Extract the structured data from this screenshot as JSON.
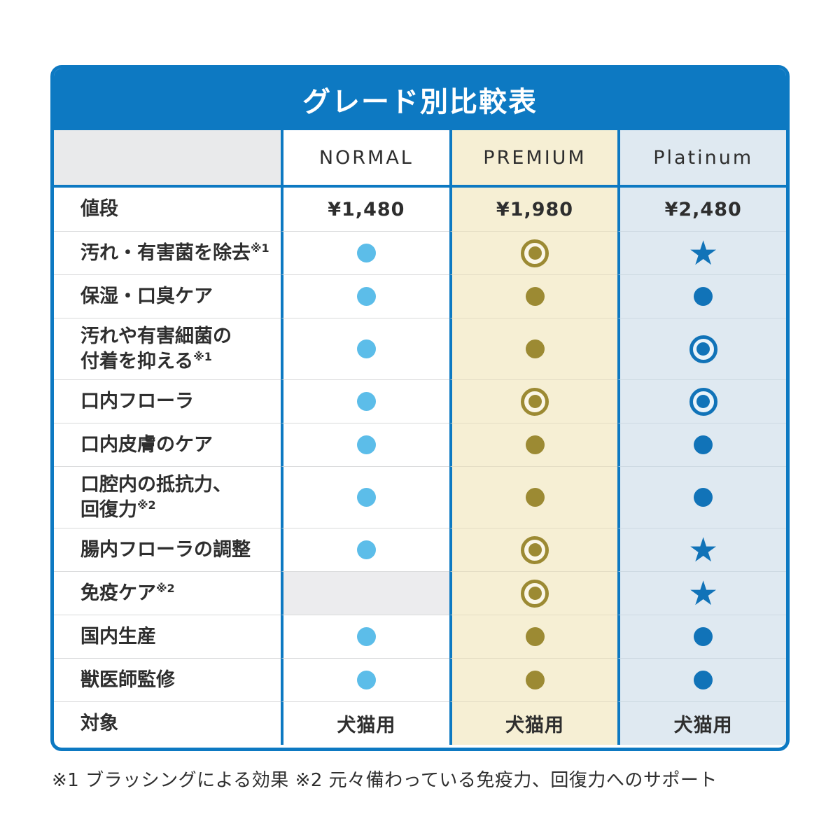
{
  "title": "グレード別比較表",
  "columns": [
    {
      "key": "normal",
      "label": "NORMAL"
    },
    {
      "key": "premium",
      "label": "PREMIUM"
    },
    {
      "key": "platinum",
      "label": "Platinum"
    }
  ],
  "rows": [
    {
      "label": "値段",
      "sup": "",
      "double": false,
      "cells": [
        {
          "type": "text",
          "value": "¥1,480"
        },
        {
          "type": "text",
          "value": "¥1,980"
        },
        {
          "type": "text",
          "value": "¥2,480"
        }
      ]
    },
    {
      "label": "汚れ・有害菌を除去",
      "sup": "※1",
      "double": false,
      "cells": [
        {
          "type": "dot"
        },
        {
          "type": "ring"
        },
        {
          "type": "star"
        }
      ]
    },
    {
      "label": "保湿・口臭ケア",
      "sup": "",
      "double": false,
      "cells": [
        {
          "type": "dot"
        },
        {
          "type": "dot"
        },
        {
          "type": "dot"
        }
      ]
    },
    {
      "label": "汚れや有害細菌の\n付着を抑える",
      "sup": "※1",
      "double": true,
      "cells": [
        {
          "type": "dot"
        },
        {
          "type": "dot"
        },
        {
          "type": "ring"
        }
      ]
    },
    {
      "label": "口内フローラ",
      "sup": "",
      "double": false,
      "cells": [
        {
          "type": "dot"
        },
        {
          "type": "ring"
        },
        {
          "type": "ring"
        }
      ]
    },
    {
      "label": "口内皮膚のケア",
      "sup": "",
      "double": false,
      "cells": [
        {
          "type": "dot"
        },
        {
          "type": "dot"
        },
        {
          "type": "dot"
        }
      ]
    },
    {
      "label": "口腔内の抵抗力、\n回復力",
      "sup": "※2",
      "double": true,
      "cells": [
        {
          "type": "dot"
        },
        {
          "type": "dot"
        },
        {
          "type": "dot"
        }
      ]
    },
    {
      "label": "腸内フローラの調整",
      "sup": "",
      "double": false,
      "cells": [
        {
          "type": "dot"
        },
        {
          "type": "ring"
        },
        {
          "type": "star"
        }
      ]
    },
    {
      "label": "免疫ケア",
      "sup": "※2",
      "double": false,
      "cells": [
        {
          "type": "none"
        },
        {
          "type": "ring"
        },
        {
          "type": "star"
        }
      ]
    },
    {
      "label": "国内生産",
      "sup": "",
      "double": false,
      "cells": [
        {
          "type": "dot"
        },
        {
          "type": "dot"
        },
        {
          "type": "dot"
        }
      ]
    },
    {
      "label": "獣医師監修",
      "sup": "",
      "double": false,
      "cells": [
        {
          "type": "dot"
        },
        {
          "type": "dot"
        },
        {
          "type": "dot"
        }
      ]
    },
    {
      "label": "対象",
      "sup": "",
      "double": false,
      "cells": [
        {
          "type": "text",
          "value": "犬猫用"
        },
        {
          "type": "text",
          "value": "犬猫用"
        },
        {
          "type": "text",
          "value": "犬猫用"
        }
      ]
    }
  ],
  "footnote": "※1 ブラッシングによる効果 ※2 元々備わっている免疫力、回復力へのサポート",
  "icons": {
    "star_glyph": "★"
  },
  "colors": {
    "header_blue": "#0d79c2",
    "normal_dot_blue": "#5cbde9",
    "premium_gold": "#9c8a33",
    "platinum_blue": "#1173b8",
    "premium_bg": "#f6efd4",
    "platinum_bg": "#dfe9f1",
    "header_label_bg": "#e9eaeb",
    "empty_cell_bg": "#ececee"
  }
}
